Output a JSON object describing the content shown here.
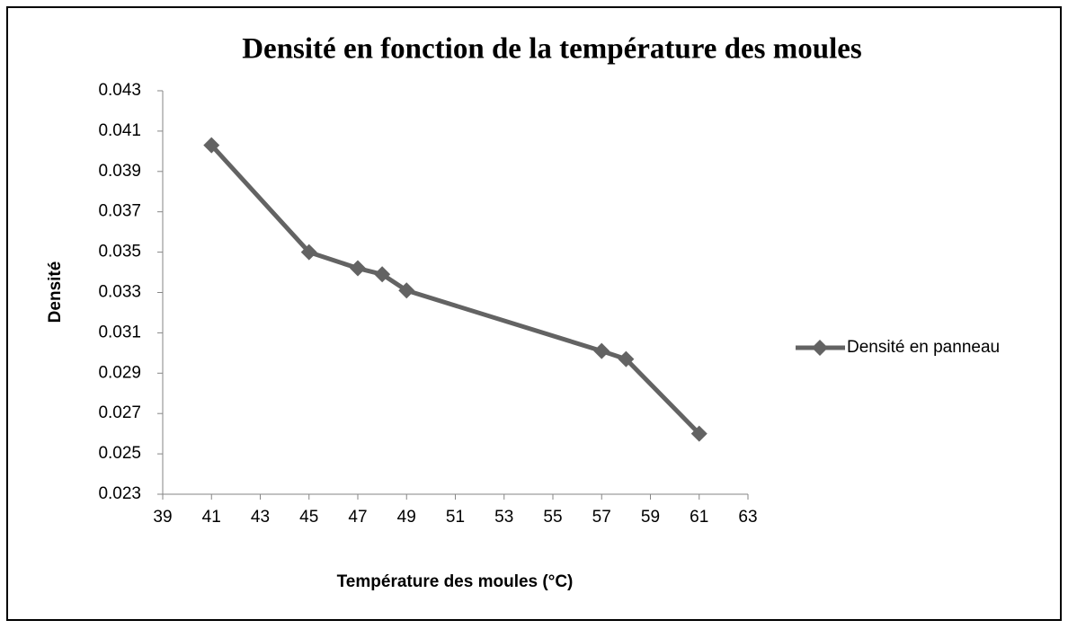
{
  "chart_data": {
    "type": "line",
    "title": "Densité en fonction de la température des moules",
    "x_label": "Température des moules (°C)",
    "y_label": "Densité",
    "x": [
      41,
      45,
      47,
      48,
      49,
      57,
      58,
      61
    ],
    "series": [
      {
        "name": "Densité en panneau",
        "color": "#636363",
        "values": [
          0.0403,
          0.035,
          0.0342,
          0.0339,
          0.0331,
          0.0301,
          0.0297,
          0.026
        ]
      }
    ],
    "xlim": [
      39,
      63
    ],
    "xticks": [
      39,
      41,
      43,
      45,
      47,
      49,
      51,
      53,
      55,
      57,
      59,
      61,
      63
    ],
    "ylim": [
      0.023,
      0.043
    ],
    "yticks": [
      0.023,
      0.025,
      0.027,
      0.029,
      0.031,
      0.033,
      0.035,
      0.037,
      0.039,
      0.041,
      0.043
    ],
    "grid": false,
    "legend": "right",
    "marker": "diamond"
  }
}
